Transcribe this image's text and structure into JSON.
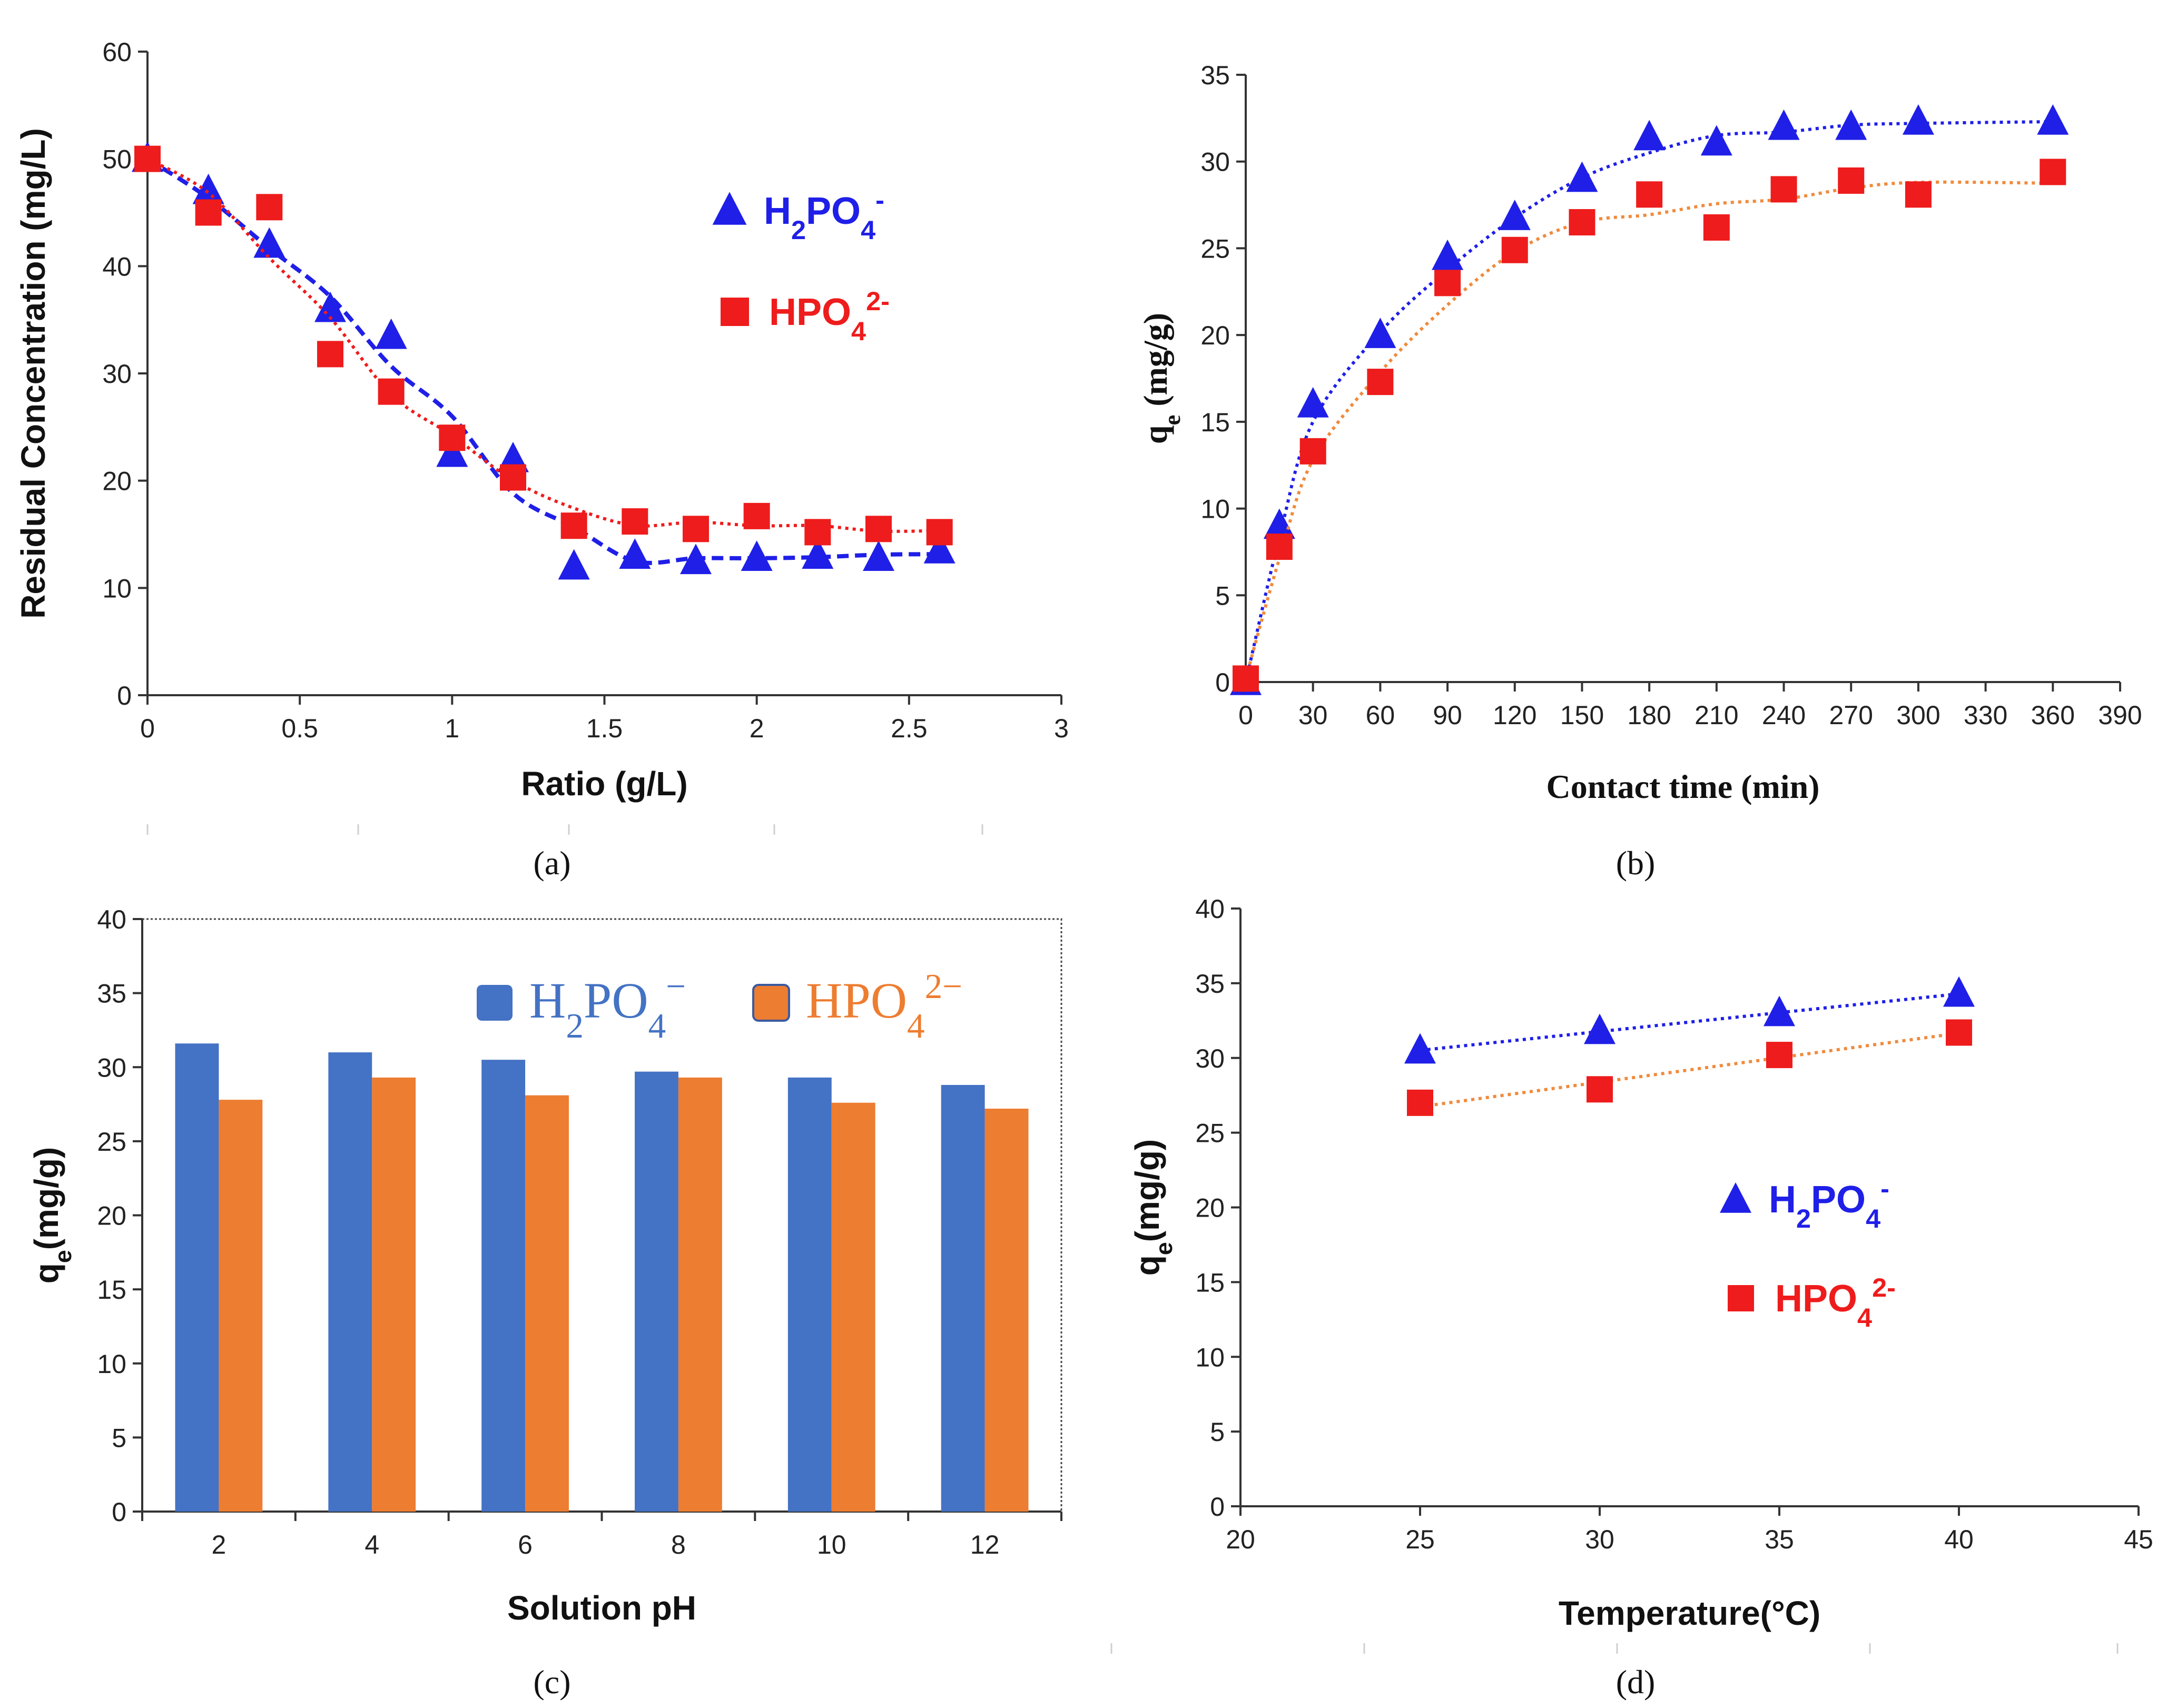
{
  "colors": {
    "blue": "#1f1fe8",
    "red": "#ee1c1c",
    "bar_blue": "#4472c4",
    "bar_orange": "#ed7d31",
    "orange_fit": "#f08a3c"
  },
  "chart_data": [
    {
      "id": "a",
      "type": "scatter",
      "panel_label": "(a)",
      "xlabel": "Ratio (g/L)",
      "ylabel": "Residual Concentration (mg/L)",
      "xlim": [
        0,
        3
      ],
      "ylim": [
        0,
        60
      ],
      "xticks": [
        0,
        0.5,
        1,
        1.5,
        2,
        2.5,
        3
      ],
      "xtick_labels": [
        "0",
        "0.5",
        "1",
        "1.5",
        "2",
        "2.5",
        "3"
      ],
      "yticks": [
        0,
        10,
        20,
        30,
        40,
        50,
        60
      ],
      "ytick_labels": [
        "0",
        "10",
        "20",
        "30",
        "40",
        "50",
        "60"
      ],
      "legend_position": "top-right",
      "series": [
        {
          "name": "H2PO4-",
          "legend": {
            "base": "H",
            "sub1": "2",
            "mid": "PO",
            "sub2": "4",
            "sup": "-"
          },
          "marker": "triangle",
          "color": "#1f1fe8",
          "fit": "dashed",
          "x": [
            0,
            0.2,
            0.4,
            0.6,
            0.8,
            1.0,
            1.2,
            1.4,
            1.6,
            1.8,
            2.0,
            2.2,
            2.4,
            2.6
          ],
          "y": [
            50,
            47,
            42,
            36,
            33.5,
            22.5,
            22,
            12,
            13,
            12.5,
            12.8,
            13,
            12.8,
            13.5
          ]
        },
        {
          "name": "HPO42-",
          "legend": {
            "base": "HPO",
            "sub1": "4",
            "sup": "2-"
          },
          "marker": "square",
          "color": "#ee1c1c",
          "fit": "dotted",
          "x": [
            0,
            0.2,
            0.4,
            0.6,
            0.8,
            1.0,
            1.2,
            1.4,
            1.6,
            1.8,
            2.0,
            2.2,
            2.4,
            2.6
          ],
          "y": [
            50,
            45,
            45.5,
            31.8,
            28.3,
            24,
            20.3,
            15.8,
            16.2,
            15.5,
            16.7,
            15.2,
            15.5,
            15.2
          ]
        }
      ]
    },
    {
      "id": "b",
      "type": "scatter",
      "panel_label": "(b)",
      "xlabel": "Contact time (min)",
      "ylabel": {
        "base": "q",
        "sub": "e",
        "rest": " (mg/g)"
      },
      "xlim": [
        0,
        390
      ],
      "ylim": [
        0,
        35
      ],
      "xticks": [
        0,
        30,
        60,
        90,
        120,
        150,
        180,
        210,
        240,
        270,
        300,
        330,
        360,
        390
      ],
      "xtick_labels": [
        "0",
        "30",
        "60",
        "90",
        "120",
        "150",
        "180",
        "210",
        "240",
        "270",
        "300",
        "330",
        "360",
        "390"
      ],
      "yticks": [
        0,
        5,
        10,
        15,
        20,
        25,
        30,
        35
      ],
      "ytick_labels": [
        "0",
        "5",
        "10",
        "15",
        "20",
        "25",
        "30",
        "35"
      ],
      "series": [
        {
          "name": "H2PO4-",
          "marker": "triangle",
          "color": "#1f1fe8",
          "fit": "dotted",
          "x": [
            0,
            15,
            30,
            60,
            90,
            120,
            150,
            180,
            210,
            240,
            270,
            300,
            360
          ],
          "y": [
            0,
            9,
            16,
            20,
            24.5,
            26.8,
            29,
            31.4,
            31.1,
            32,
            32,
            32.3,
            32.3
          ]
        },
        {
          "name": "HPO42-",
          "marker": "square",
          "color": "#ee1c1c",
          "fit": "dotted",
          "fit_color": "#f08a3c",
          "x": [
            0,
            15,
            30,
            60,
            90,
            120,
            150,
            180,
            210,
            240,
            270,
            300,
            360
          ],
          "y": [
            0.2,
            7.8,
            13.3,
            17.3,
            23,
            24.9,
            26.5,
            28.1,
            26.2,
            28.4,
            28.9,
            28.1,
            29.4
          ]
        }
      ]
    },
    {
      "id": "c",
      "type": "bar",
      "panel_label": "(c)",
      "xlabel": "Solution pH",
      "ylabel": {
        "base": "q",
        "sub": "e",
        "rest": "(mg/g)"
      },
      "categories": [
        "2",
        "4",
        "6",
        "8",
        "10",
        "12"
      ],
      "ylim": [
        0,
        40
      ],
      "yticks": [
        0,
        5,
        10,
        15,
        20,
        25,
        30,
        35,
        40
      ],
      "ytick_labels": [
        "0",
        "5",
        "10",
        "15",
        "20",
        "25",
        "30",
        "35",
        "40"
      ],
      "legend_position": "top-right",
      "series": [
        {
          "name": "H2PO4-",
          "legend": {
            "base": "H",
            "sub1": "2",
            "mid": "PO",
            "sub2": "4",
            "sup": "−"
          },
          "color": "#4472c4",
          "values": [
            31.6,
            31,
            30.5,
            29.7,
            29.3,
            28.8
          ]
        },
        {
          "name": "HPO42-",
          "legend": {
            "base": "HPO",
            "sub1": "4",
            "sup": "2−"
          },
          "color": "#ed7d31",
          "values": [
            27.8,
            29.3,
            28.1,
            29.3,
            27.6,
            27.2
          ]
        }
      ]
    },
    {
      "id": "d",
      "type": "scatter",
      "panel_label": "(d)",
      "xlabel": "Temperature(°C)",
      "ylabel": {
        "base": "q",
        "sub": "e",
        "rest": "(mg/g)"
      },
      "xlim": [
        20,
        45
      ],
      "ylim": [
        0,
        40
      ],
      "xticks": [
        20,
        25,
        30,
        35,
        40,
        45
      ],
      "xtick_labels": [
        "20",
        "25",
        "30",
        "35",
        "40",
        "45"
      ],
      "yticks": [
        0,
        5,
        10,
        15,
        20,
        25,
        30,
        35,
        40
      ],
      "ytick_labels": [
        "0",
        "5",
        "10",
        "15",
        "20",
        "25",
        "30",
        "35",
        "40"
      ],
      "legend_position": "center-right",
      "series": [
        {
          "name": "H2PO4-",
          "legend": {
            "base": "H",
            "sub1": "2",
            "mid": "PO",
            "sub2": "4",
            "sup": "-"
          },
          "marker": "triangle",
          "color": "#1f1fe8",
          "fit": "dotted",
          "x": [
            25,
            30,
            35,
            40
          ],
          "y": [
            30.5,
            31.8,
            33,
            34.3
          ]
        },
        {
          "name": "HPO42-",
          "legend": {
            "base": "HPO",
            "sub1": "4",
            "sup": "2-"
          },
          "marker": "square",
          "color": "#ee1c1c",
          "fit": "dotted",
          "fit_color": "#f08a3c",
          "x": [
            25,
            30,
            35,
            40
          ],
          "y": [
            27,
            27.9,
            30.2,
            31.7
          ]
        }
      ]
    }
  ]
}
